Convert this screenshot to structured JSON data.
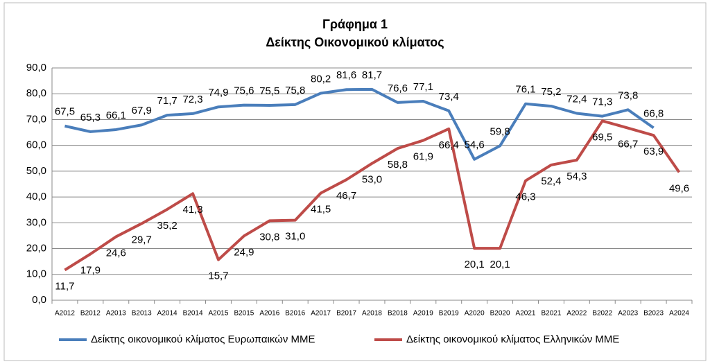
{
  "chart_data": {
    "type": "line",
    "title": "Γράφημα 1",
    "subtitle": "Δείκτης Οικονομικού κλίματος",
    "categories": [
      "A2012",
      "B2012",
      "A2013",
      "B2013",
      "A2014",
      "B2014",
      "A2015",
      "B2015",
      "A2016",
      "B2016",
      "A2017",
      "B2017",
      "A2018",
      "B2018",
      "A2019",
      "B2019",
      "A2020",
      "B2020",
      "A2021",
      "B2021",
      "A2022",
      "B2022",
      "A2023",
      "B2023",
      "A2024"
    ],
    "series": [
      {
        "name": "Δείκτης οικονομικού κλίματος Ευρωπαικών ΜΜΕ",
        "color": "#4a7ebb",
        "values": [
          67.5,
          65.3,
          66.1,
          67.9,
          71.7,
          72.3,
          74.9,
          75.6,
          75.5,
          75.8,
          80.2,
          81.6,
          81.7,
          76.6,
          77.1,
          73.4,
          54.6,
          59.8,
          76.1,
          75.2,
          72.4,
          71.3,
          73.8,
          66.8,
          null
        ],
        "value_labels": [
          "67,5",
          "65,3",
          "66,1",
          "67,9",
          "71,7",
          "72,3",
          "74,9",
          "75,6",
          "75,5",
          "75,8",
          "80,2",
          "81,6",
          "81,7",
          "76,6",
          "77,1",
          "73,4",
          "54,6",
          "59,8",
          "76,1",
          "75,2",
          "72,4",
          "71,3",
          "73,8",
          "66,8",
          null
        ]
      },
      {
        "name": "Δείκτης οικονομικού κλίματος Ελληνικών ΜΜΕ",
        "color": "#be4b48",
        "values": [
          11.7,
          17.9,
          24.6,
          29.7,
          35.2,
          41.3,
          15.7,
          24.9,
          30.8,
          31.0,
          41.5,
          46.7,
          53.0,
          58.8,
          61.9,
          66.4,
          20.1,
          20.1,
          46.3,
          52.4,
          54.3,
          69.5,
          66.7,
          63.9,
          49.6
        ],
        "value_labels": [
          "11,7",
          "17,9",
          "24,6",
          "29,7",
          "35,2",
          "41,3",
          "15,7",
          "24,9",
          "30,8",
          "31,0",
          "41,5",
          "46,7",
          "53,0",
          "58,8",
          "61,9",
          "66,4",
          "20,1",
          "20,1",
          "46,3",
          "52,4",
          "54,3",
          "69,5",
          "66,7",
          "63,9",
          "49,6"
        ]
      }
    ],
    "ylim": [
      0,
      90
    ],
    "yticks": [
      {
        "value": 0,
        "label": "0,0"
      },
      {
        "value": 10,
        "label": "10,0"
      },
      {
        "value": 20,
        "label": "20,0"
      },
      {
        "value": 30,
        "label": "30,0"
      },
      {
        "value": 40,
        "label": "40,0"
      },
      {
        "value": 50,
        "label": "50,0"
      },
      {
        "value": 60,
        "label": "60,0"
      },
      {
        "value": 70,
        "label": "70,0"
      },
      {
        "value": 80,
        "label": "80,0"
      },
      {
        "value": 90,
        "label": "90,0"
      }
    ],
    "grid": true
  }
}
